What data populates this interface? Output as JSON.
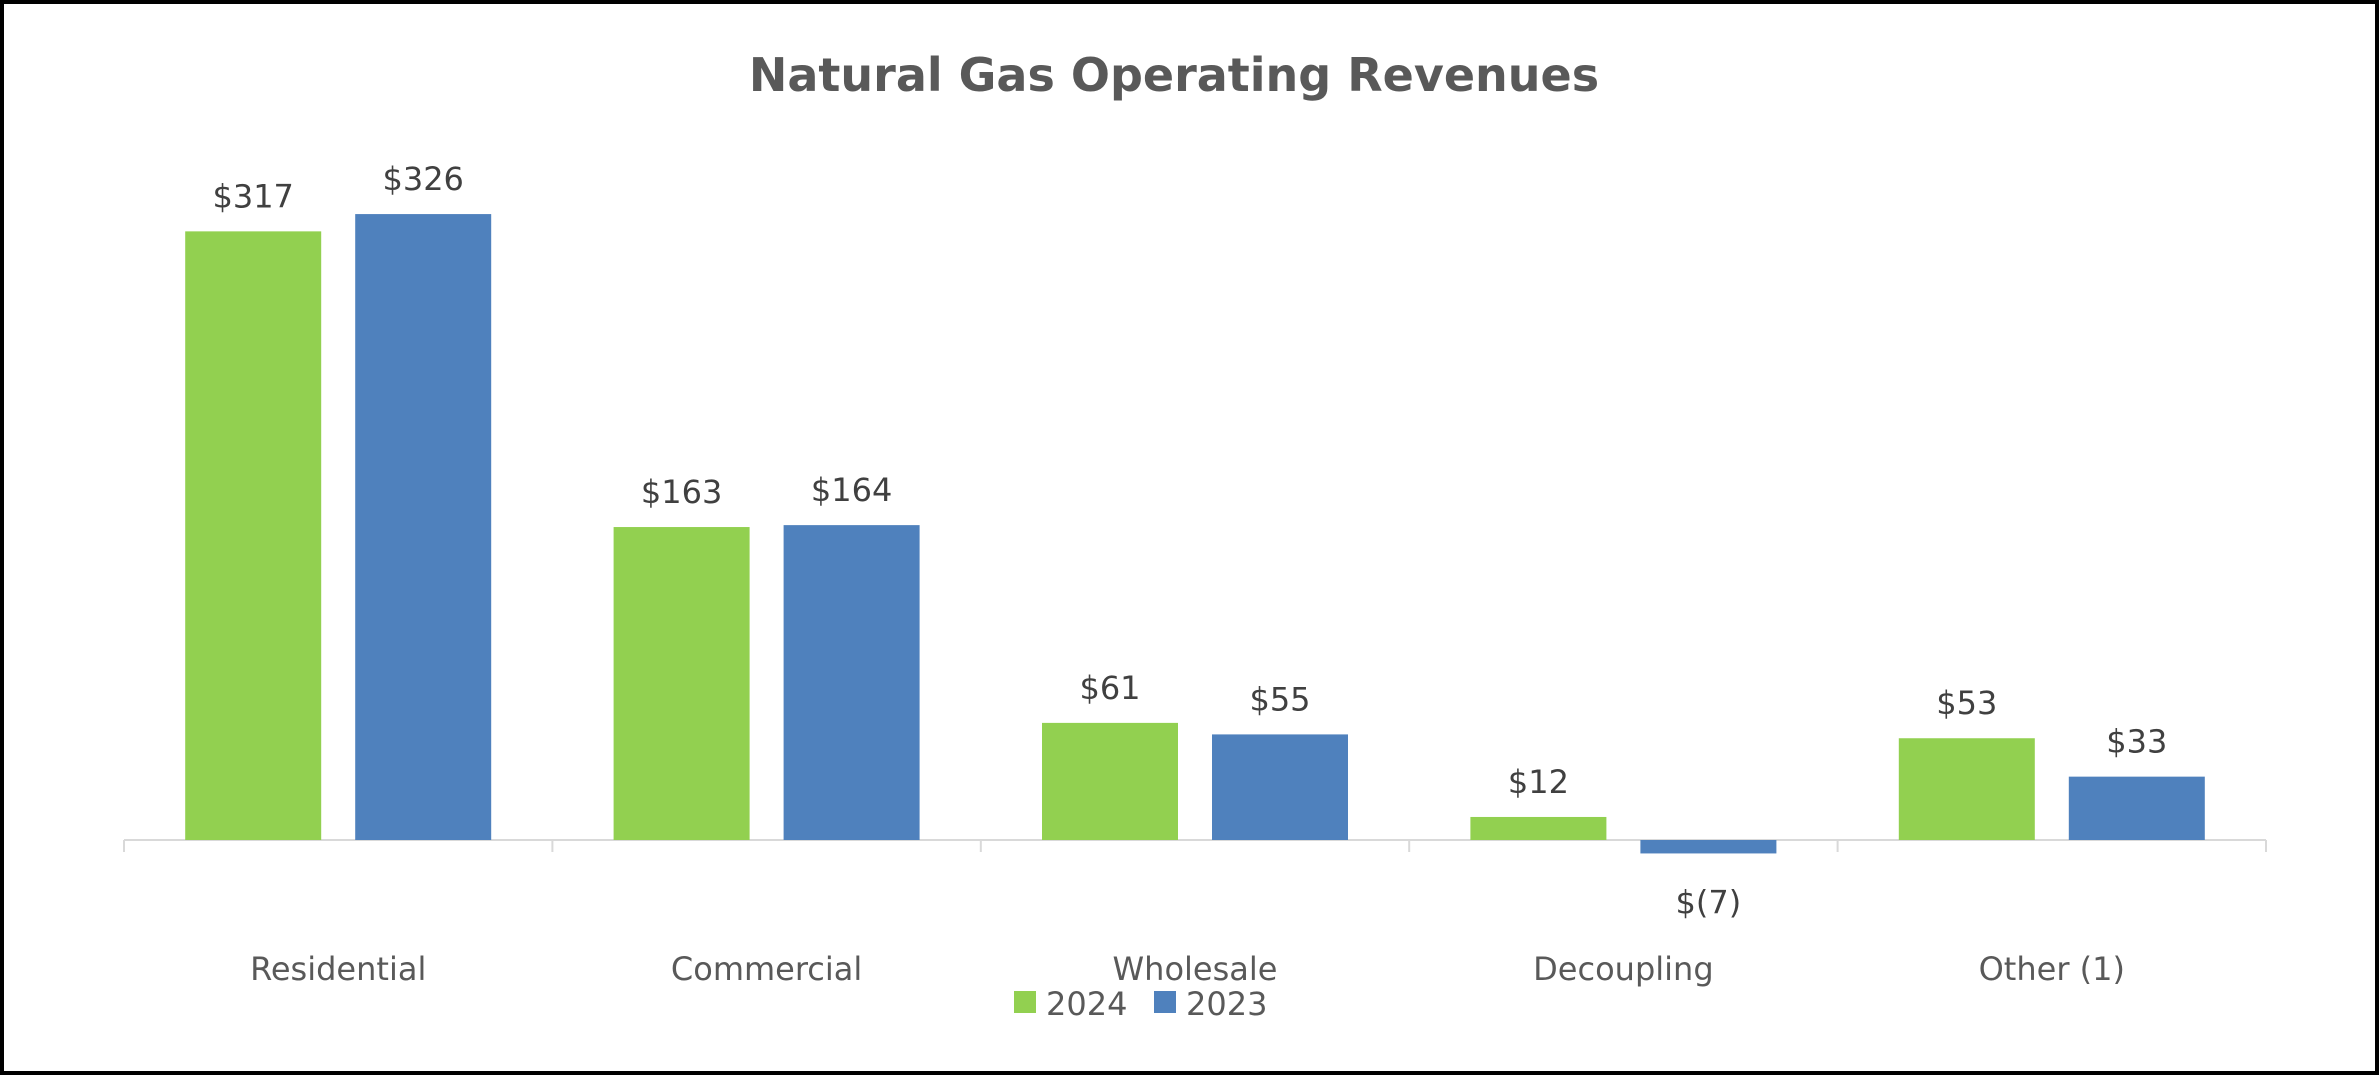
{
  "chart_data": {
    "type": "bar",
    "title": "Natural Gas Operating Revenues",
    "xlabel": "",
    "ylabel": "",
    "categories": [
      "Residential",
      "Commercial",
      "Wholesale",
      "Decoupling",
      "Other (1)"
    ],
    "series": [
      {
        "name": "2024",
        "color": "#92D050",
        "values": [
          317,
          163,
          61,
          12,
          53
        ],
        "labels": [
          "$317",
          "$163",
          "$61",
          "$12",
          "$53"
        ]
      },
      {
        "name": "2023",
        "color": "#4F81BD",
        "values": [
          326,
          164,
          55,
          -7,
          33
        ],
        "labels": [
          "$326",
          "$164",
          "$55",
          "$(7)",
          "$33"
        ]
      }
    ],
    "ylim": [
      -7,
      326
    ],
    "grid": false,
    "legend_position": "bottom"
  }
}
